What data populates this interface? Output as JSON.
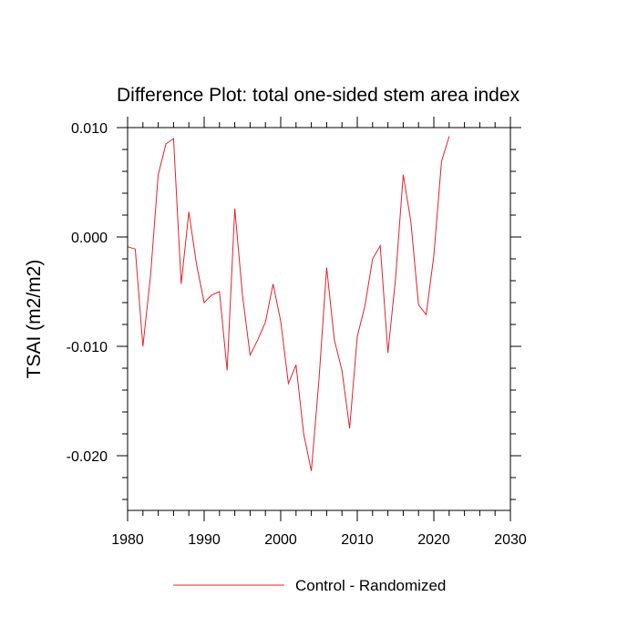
{
  "chart_data": {
    "type": "line",
    "title": "Difference Plot: total one-sided stem area index",
    "xlabel": "",
    "ylabel": "TSAI  (m2/m2)",
    "xlim": [
      1980,
      2030
    ],
    "ylim": [
      -0.025,
      0.01
    ],
    "x_ticks": [
      1980,
      1990,
      2000,
      2010,
      2020,
      2030
    ],
    "x_tick_labels": [
      "1980",
      "1990",
      "2000",
      "2010",
      "2020",
      "2030"
    ],
    "y_ticks": [
      0.01,
      0.0,
      -0.01,
      -0.02
    ],
    "y_tick_labels": [
      "0.010",
      "0.000",
      "-0.010",
      "-0.020"
    ],
    "grid": false,
    "legend_position": "bottom-center",
    "series": [
      {
        "name": "Control - Randomized",
        "color": "#e8202a",
        "x": [
          1980,
          1981,
          1982,
          1983,
          1984,
          1985,
          1986,
          1987,
          1988,
          1989,
          1990,
          1991,
          1992,
          1993,
          1994,
          1995,
          1996,
          1997,
          1998,
          1999,
          2000,
          2001,
          2002,
          2003,
          2004,
          2005,
          2006,
          2007,
          2008,
          2009,
          2010,
          2011,
          2012,
          2013,
          2014,
          2015,
          2016,
          2017,
          2018,
          2019,
          2020,
          2021,
          2022
        ],
        "y": [
          -0.0009,
          -0.0011,
          -0.01,
          -0.0035,
          0.0057,
          0.0085,
          0.009,
          -0.0043,
          0.0023,
          -0.0025,
          -0.006,
          -0.0053,
          -0.005,
          -0.0122,
          0.0026,
          -0.0053,
          -0.0108,
          -0.0094,
          -0.0078,
          -0.0043,
          -0.0077,
          -0.0134,
          -0.0117,
          -0.018,
          -0.0214,
          -0.013,
          -0.0028,
          -0.0094,
          -0.0122,
          -0.0175,
          -0.0091,
          -0.0063,
          -0.002,
          -0.0008,
          -0.0106,
          -0.0038,
          0.0057,
          0.0014,
          -0.0062,
          -0.0071,
          -0.0017,
          0.0069,
          0.0092
        ]
      }
    ]
  }
}
